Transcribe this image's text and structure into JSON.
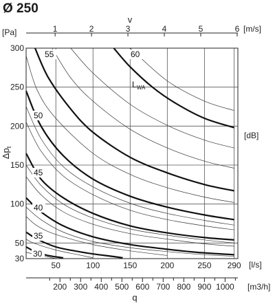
{
  "chart_data": {
    "type": "line",
    "title": "Ø 250",
    "y_label": "Δp",
    "y_label_sub": "t",
    "y_unit": "[Pa]",
    "y_range": [
      30,
      300
    ],
    "y_ticks": [
      30,
      50,
      100,
      150,
      200,
      250,
      300
    ],
    "x_bottom_unit": "[l/s]",
    "x_bottom_range": [
      10,
      295
    ],
    "x_bottom_ticks": [
      50,
      100,
      150,
      200,
      250,
      290
    ],
    "x_top_name": "v",
    "x_top_unit": "[m/s]",
    "x_top_ticks": [
      1,
      2,
      3,
      4,
      5,
      6
    ],
    "x_top_ls_per_ms": 49,
    "x_lower_name": "q",
    "x_lower_unit": "[m3/h]",
    "x_lower_ticks": [
      200,
      300,
      400,
      500,
      600,
      700,
      800,
      900,
      1000
    ],
    "right_unit": "[dB]",
    "lwa_label": "L",
    "lwa_label_sub": "WA",
    "grid": true,
    "series": [
      {
        "name": "30",
        "x": [
          10,
          20,
          35,
          45,
          60
        ],
        "y": [
          45,
          40,
          35,
          33,
          31
        ]
      },
      {
        "name": "35",
        "x": [
          10,
          25,
          50,
          75,
          100,
          125,
          140
        ],
        "y": [
          64,
          55,
          45,
          40,
          36,
          33,
          31
        ]
      },
      {
        "name": "40",
        "x": [
          10,
          30,
          60,
          100,
          150,
          200,
          240,
          290
        ],
        "y": [
          108,
          90,
          72,
          58,
          48,
          42,
          38,
          35
        ]
      },
      {
        "name": "45",
        "x": [
          10,
          30,
          60,
          100,
          150,
          200,
          250,
          290
        ],
        "y": [
          165,
          132,
          108,
          88,
          72,
          63,
          57,
          54
        ]
      },
      {
        "name": "50",
        "x": [
          10,
          30,
          60,
          100,
          150,
          200,
          250,
          290
        ],
        "y": [
          245,
          200,
          162,
          132,
          110,
          96,
          86,
          80
        ]
      },
      {
        "name": "55",
        "x": [
          22,
          40,
          70,
          100,
          150,
          200,
          250,
          290
        ],
        "y": [
          300,
          262,
          222,
          192,
          160,
          140,
          125,
          117
        ]
      },
      {
        "name": "60",
        "x": [
          128,
          150,
          180,
          210,
          250,
          290
        ],
        "y": [
          300,
          276,
          250,
          230,
          210,
          198
        ]
      }
    ],
    "minor_series": [
      {
        "x": [
          10,
          30,
          40,
          50
        ],
        "y": [
          38,
          34,
          32,
          30
        ]
      },
      {
        "x": [
          10,
          20,
          50,
          80,
          100
        ],
        "y": [
          55,
          50,
          41,
          35,
          31
        ]
      },
      {
        "x": [
          10,
          25,
          50,
          100,
          150,
          200
        ],
        "y": [
          84,
          72,
          61,
          48,
          40,
          34
        ]
      },
      {
        "x": [
          10,
          30,
          60,
          100,
          150,
          200,
          250,
          290
        ],
        "y": [
          96,
          80,
          64,
          52,
          44,
          39,
          35,
          33
        ]
      },
      {
        "x": [
          10,
          30,
          60,
          100,
          150,
          200,
          250,
          290
        ],
        "y": [
          135,
          112,
          90,
          74,
          62,
          55,
          49,
          46
        ]
      },
      {
        "x": [
          10,
          30,
          60,
          100,
          150,
          200,
          250,
          290
        ],
        "y": [
          150,
          124,
          100,
          82,
          68,
          60,
          54,
          50
        ]
      },
      {
        "x": [
          10,
          30,
          60,
          100,
          150,
          200,
          250,
          290
        ],
        "y": [
          205,
          168,
          136,
          112,
          92,
          80,
          72,
          67
        ]
      },
      {
        "x": [
          10,
          30,
          60,
          100,
          150,
          200,
          250,
          290
        ],
        "y": [
          225,
          184,
          148,
          122,
          101,
          88,
          79,
          73
        ]
      },
      {
        "x": [
          10,
          25,
          50,
          100,
          150,
          200,
          250,
          290
        ],
        "y": [
          290,
          246,
          210,
          165,
          138,
          121,
          109,
          102
        ]
      },
      {
        "x": [
          45,
          70,
          100,
          150,
          200,
          250,
          290
        ],
        "y": [
          300,
          262,
          232,
          196,
          172,
          155,
          146
        ]
      },
      {
        "x": [
          70,
          100,
          150,
          200,
          250,
          290
        ],
        "y": [
          300,
          268,
          228,
          201,
          182,
          172
        ]
      },
      {
        "x": [
          150,
          200,
          250,
          290
        ],
        "y": [
          300,
          258,
          232,
          220
        ]
      }
    ]
  }
}
